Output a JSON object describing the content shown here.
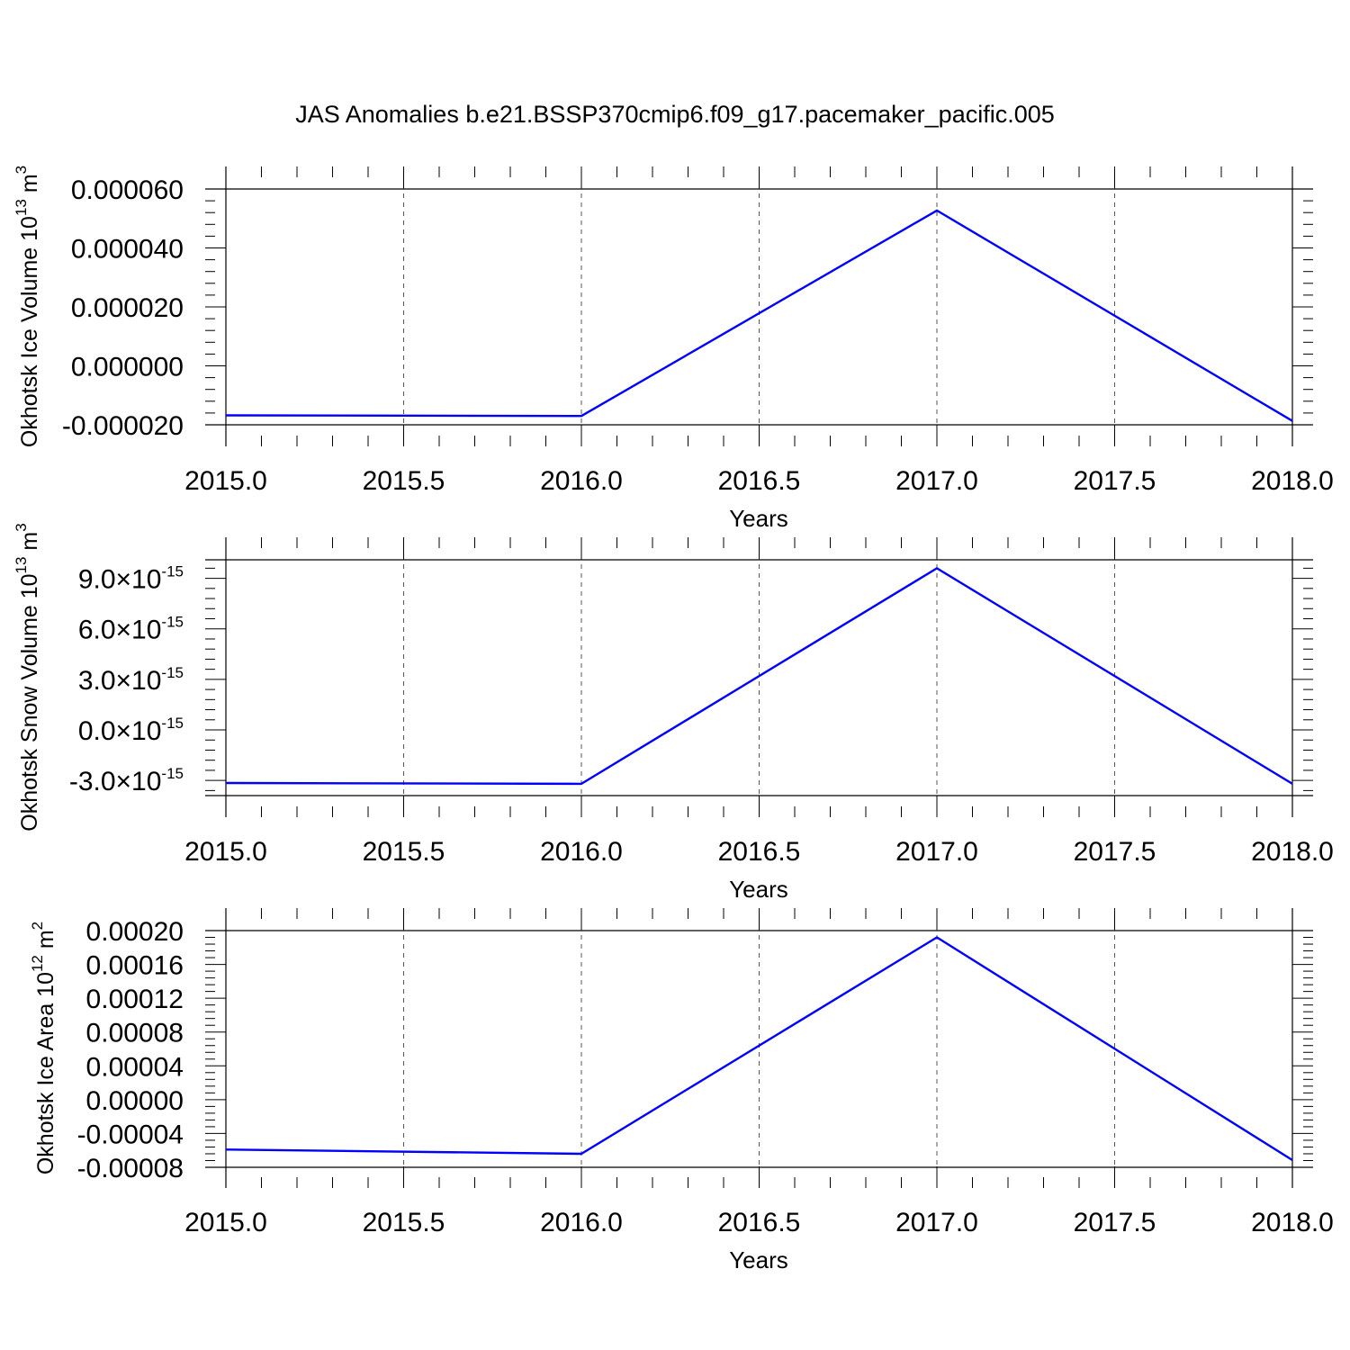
{
  "figure": {
    "title": "JAS Anomalies b.e21.BSSP370cmip6.f09_g17.pacemaker_pacific.005"
  },
  "chart_data": [
    {
      "type": "line",
      "xlabel": "Years",
      "ylabel": {
        "text": "Okhotsk Ice Volume 10",
        "exponent": "13",
        "unit": " m",
        "unit_exponent": "3"
      },
      "xlim": [
        2015.0,
        2018.0
      ],
      "ylim": [
        -2e-05,
        6e-05
      ],
      "x_ticks": [
        "2015.0",
        "2015.5",
        "2016.0",
        "2016.5",
        "2017.0",
        "2017.5",
        "2018.0"
      ],
      "y_ticks": [
        {
          "value": 6e-05,
          "label": "0.000060"
        },
        {
          "value": 4e-05,
          "label": "0.000040"
        },
        {
          "value": 2e-05,
          "label": "0.000020"
        },
        {
          "value": 0.0,
          "label": "0.000000"
        },
        {
          "value": -2e-05,
          "label": "-0.000020"
        }
      ],
      "series": [
        {
          "x": [
            2015,
            2016,
            2017,
            2018
          ],
          "y": [
            -1.68e-05,
            -1.7e-05,
            5.27e-05,
            -1.87e-05
          ],
          "color": "#0000ff"
        }
      ],
      "grid": "vertical dashed"
    },
    {
      "type": "line",
      "xlabel": "Years",
      "ylabel": {
        "text": "Okhotsk Snow Volume 10",
        "exponent": "13",
        "unit": " m",
        "unit_exponent": "3"
      },
      "xlim": [
        2015.0,
        2018.0
      ],
      "ylim": [
        -3.9e-15,
        1.01e-14
      ],
      "x_ticks": [
        "2015.0",
        "2015.5",
        "2016.0",
        "2016.5",
        "2017.0",
        "2017.5",
        "2018.0"
      ],
      "y_ticks": [
        {
          "value": 9e-15,
          "mantissa": "9.0",
          "times": "×10",
          "exp": "-15"
        },
        {
          "value": 6e-15,
          "mantissa": "6.0",
          "times": "×10",
          "exp": "-15"
        },
        {
          "value": 3e-15,
          "mantissa": "3.0",
          "times": "×10",
          "exp": "-15"
        },
        {
          "value": 0.0,
          "mantissa": "0.0",
          "times": "×10",
          "exp": "-15"
        },
        {
          "value": -3e-15,
          "mantissa": "-3.0",
          "times": "×10",
          "exp": "-15"
        }
      ],
      "series": [
        {
          "x": [
            2015,
            2016,
            2017,
            2018
          ],
          "y": [
            -3.15e-15,
            -3.2e-15,
            9.6e-15,
            -3.2e-15
          ],
          "color": "#0000ff"
        }
      ],
      "grid": "vertical dashed"
    },
    {
      "type": "line",
      "xlabel": "Years",
      "ylabel": {
        "text": "Okhotsk Ice Area 10",
        "exponent": "12",
        "unit": " m",
        "unit_exponent": "2"
      },
      "xlim": [
        2015.0,
        2018.0
      ],
      "ylim": [
        -8e-05,
        0.0002
      ],
      "x_ticks": [
        "2015.0",
        "2015.5",
        "2016.0",
        "2016.5",
        "2017.0",
        "2017.5",
        "2018.0"
      ],
      "y_ticks": [
        {
          "value": 0.0002,
          "label": "0.00020"
        },
        {
          "value": 0.00016,
          "label": "0.00016"
        },
        {
          "value": 0.00012,
          "label": "0.00012"
        },
        {
          "value": 8e-05,
          "label": "0.00008"
        },
        {
          "value": 4e-05,
          "label": "0.00004"
        },
        {
          "value": 0.0,
          "label": "0.00000"
        },
        {
          "value": -4e-05,
          "label": "-0.00004"
        },
        {
          "value": -8e-05,
          "label": "-0.00008"
        }
      ],
      "series": [
        {
          "x": [
            2015,
            2016,
            2017,
            2018
          ],
          "y": [
            -5.9e-05,
            -6.4e-05,
            0.000192,
            -7.15e-05
          ],
          "color": "#0000ff"
        }
      ],
      "grid": "vertical dashed"
    }
  ]
}
